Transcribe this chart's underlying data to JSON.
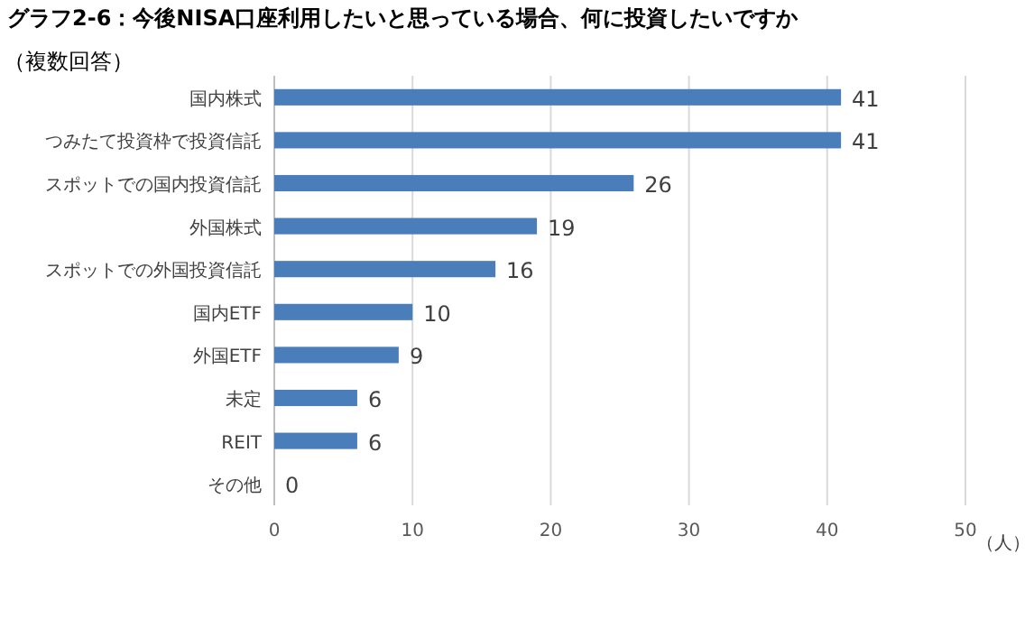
{
  "chart_data": {
    "type": "bar",
    "orientation": "horizontal",
    "title": "グラフ2-6：今後NISA口座利用したいと思っている場合、何に投資したいですか",
    "subtitle": "（複数回答）",
    "xlabel": "（人）",
    "categories": [
      "国内株式",
      "つみたて投資枠で投資信託",
      "スポットでの国内投資信託",
      "外国株式",
      "スポットでの外国投資信託",
      "国内ETF",
      "外国ETF",
      "未定",
      "REIT",
      "その他"
    ],
    "values": [
      41,
      41,
      26,
      19,
      16,
      10,
      9,
      6,
      6,
      0
    ],
    "color": "#4a7ebb",
    "xlim": [
      0,
      50
    ],
    "xticks": [
      0,
      10,
      20,
      30,
      40,
      50
    ],
    "grid": "x",
    "data_labels": true
  }
}
